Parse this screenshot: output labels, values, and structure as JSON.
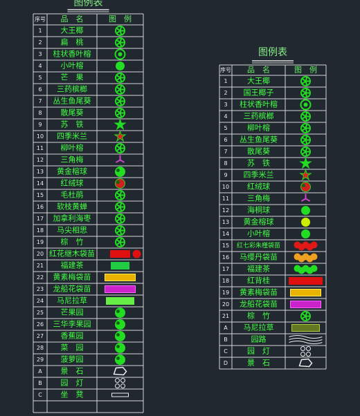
{
  "tables": [
    {
      "title": "图例表",
      "headers": [
        "序号",
        "品　名",
        "图　例"
      ],
      "rows": [
        [
          "1",
          "大王椰"
        ],
        [
          "2",
          "扁　桃"
        ],
        [
          "3",
          "柱状香叶榕"
        ],
        [
          "4",
          "小叶榕"
        ],
        [
          "5",
          "芒　果"
        ],
        [
          "6",
          "三药槟榔"
        ],
        [
          "7",
          "丛生鱼尾葵"
        ],
        [
          "8",
          "散尾葵"
        ],
        [
          "9",
          "苏　铁"
        ],
        [
          "10",
          "四季米兰"
        ],
        [
          "11",
          "柳叶榕"
        ],
        [
          "12",
          "三角梅"
        ],
        [
          "13",
          "黄金榕球"
        ],
        [
          "14",
          "红绒球"
        ],
        [
          "15",
          "毛杜鹃"
        ],
        [
          "16",
          "软枝黄蝉"
        ],
        [
          "17",
          "加拿利海枣"
        ],
        [
          "18",
          "马尖相思"
        ],
        [
          "19",
          "棕　竹"
        ],
        [
          "20",
          "红花继木袋苗"
        ],
        [
          "21",
          "福建茶"
        ],
        [
          "22",
          "黄素梅袋苗"
        ],
        [
          "23",
          "龙船花袋苗"
        ],
        [
          "24",
          "马尼拉草"
        ],
        [
          "25",
          "芒果园"
        ],
        [
          "26",
          "三华李果园"
        ],
        [
          "27",
          "香蕉园"
        ],
        [
          "28",
          "菜　园"
        ],
        [
          "29",
          "菠萝园"
        ],
        [
          "A",
          "景　石"
        ],
        [
          "B",
          "园　灯"
        ],
        [
          "C",
          "坐　凳"
        ]
      ]
    },
    {
      "title": "图例表",
      "headers": [
        "序号",
        "品　名",
        "图　例"
      ],
      "rows": [
        [
          "1",
          "大王椰"
        ],
        [
          "2",
          "国王椰子"
        ],
        [
          "3",
          "柱状香叶榕"
        ],
        [
          "4",
          "三药槟榔"
        ],
        [
          "5",
          "柳叶榕"
        ],
        [
          "6",
          "丛生鱼尾葵"
        ],
        [
          "7",
          "散尾葵"
        ],
        [
          "8",
          "苏　铁"
        ],
        [
          "9",
          "四季米兰"
        ],
        [
          "10",
          "红绒球"
        ],
        [
          "11",
          "三角梅"
        ],
        [
          "12",
          "海桐球"
        ],
        [
          "13",
          "黄金榕球"
        ],
        [
          "14",
          "小叶榕"
        ],
        [
          "15",
          "红七彩朱槿袋苗"
        ],
        [
          "16",
          "马缨丹袋苗"
        ],
        [
          "17",
          "福建茶"
        ],
        [
          "18",
          "红背桂"
        ],
        [
          "19",
          "黄素梅袋苗"
        ],
        [
          "20",
          "龙船花袋苗"
        ],
        [
          "21",
          "棕　竹"
        ],
        [
          "A",
          "马尼拉草"
        ],
        [
          "B",
          "园路"
        ],
        [
          "C",
          "园　灯"
        ],
        [
          "D",
          "景　石"
        ]
      ]
    }
  ]
}
